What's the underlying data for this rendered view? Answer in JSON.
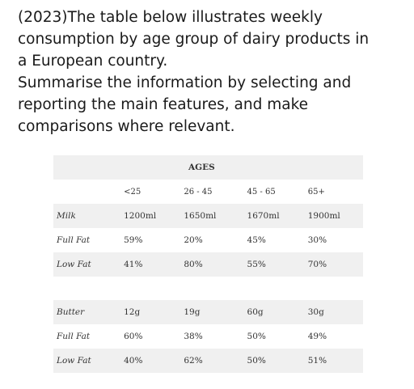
{
  "prompt": {
    "lines": [
      "(2023)The table below illustrates weekly",
      "consumption by age group of dairy products in",
      "a European country.",
      "Summarise the information by selecting and",
      "reporting the main features, and make",
      "comparisons where relevant."
    ]
  },
  "table": {
    "group_header": "AGES",
    "columns": [
      "",
      "<25",
      "26 - 45",
      "45 - 65",
      "65+"
    ],
    "section1": [
      [
        "Milk",
        "1200ml",
        "1650ml",
        "1670ml",
        "1900ml"
      ],
      [
        "Full Fat",
        "59%",
        "20%",
        "45%",
        "30%"
      ],
      [
        "Low Fat",
        "41%",
        "80%",
        "55%",
        "70%"
      ]
    ],
    "section2": [
      [
        "Butter",
        "12g",
        "19g",
        "60g",
        "30g"
      ],
      [
        "Full Fat",
        "60%",
        "38%",
        "50%",
        "49%"
      ],
      [
        "Low Fat",
        "40%",
        "62%",
        "50%",
        "51%"
      ]
    ]
  }
}
